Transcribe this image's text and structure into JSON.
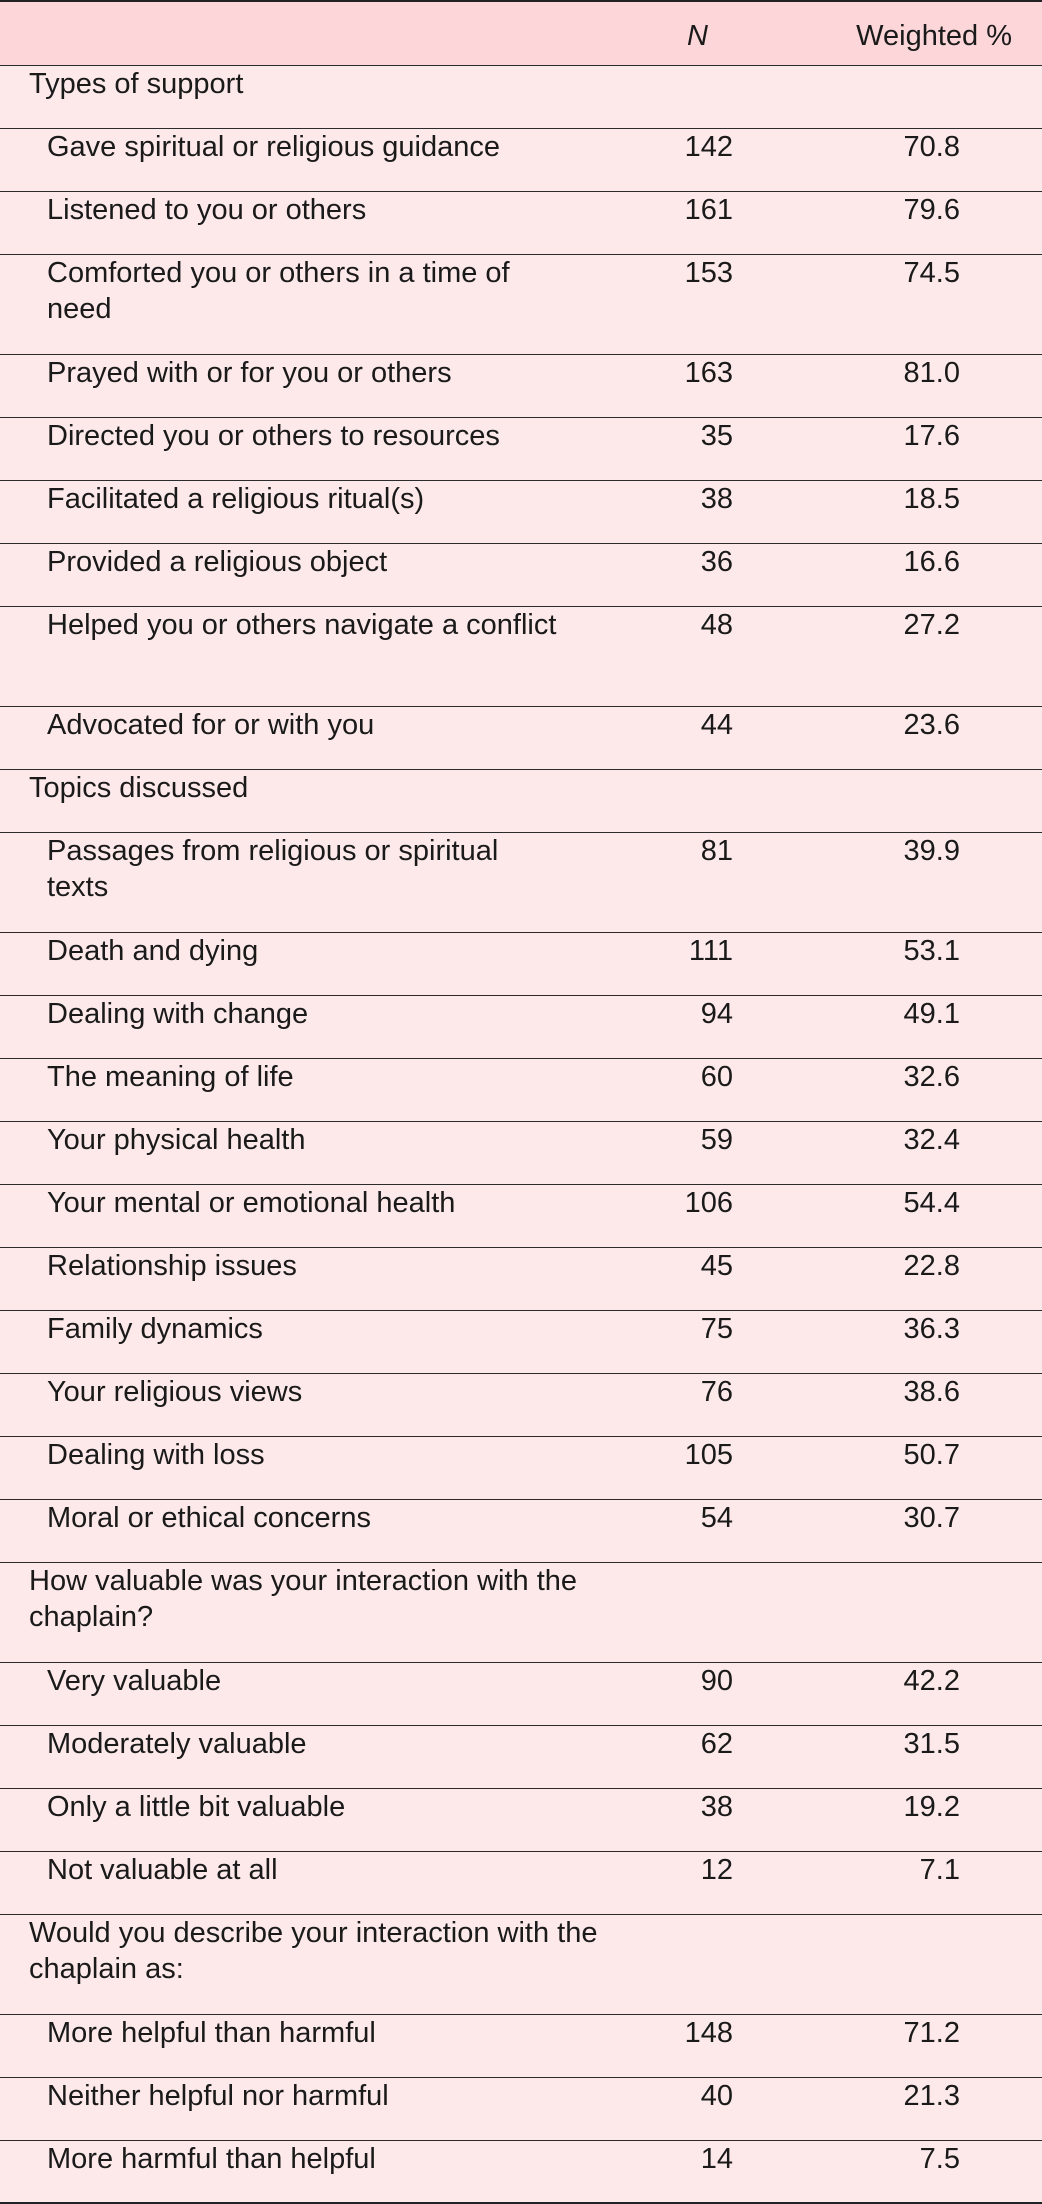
{
  "header": {
    "n_label": "N",
    "pct_label": "Weighted %"
  },
  "sections": [
    {
      "title": "Types of support",
      "rows": [
        {
          "label": "Gave spiritual or religious guidance",
          "n": "142",
          "pct": "70.8"
        },
        {
          "label": "Listened to you or others",
          "n": "161",
          "pct": "79.6"
        },
        {
          "label": "Comforted you or others in a time of need",
          "n": "153",
          "pct": "74.5"
        },
        {
          "label": "Prayed with or for you or others",
          "n": "163",
          "pct": "81.0"
        },
        {
          "label": "Directed you or others to resources",
          "n": "35",
          "pct": "17.6"
        },
        {
          "label": "Facilitated a religious ritual(s)",
          "n": "38",
          "pct": "18.5"
        },
        {
          "label": "Provided a religious object",
          "n": "36",
          "pct": "16.6"
        },
        {
          "label": "Helped you or others navigate a conflict",
          "n": "48",
          "pct": "27.2"
        },
        {
          "label": "Advocated for or with you",
          "n": "44",
          "pct": "23.6"
        }
      ]
    },
    {
      "title": "Topics discussed",
      "rows": [
        {
          "label": "Passages from religious or spiritual texts",
          "n": "81",
          "pct": "39.9"
        },
        {
          "label": "Death and dying",
          "n": "111",
          "pct": "53.1"
        },
        {
          "label": "Dealing with change",
          "n": "94",
          "pct": "49.1"
        },
        {
          "label": "The meaning of life",
          "n": "60",
          "pct": "32.6"
        },
        {
          "label": "Your physical health",
          "n": "59",
          "pct": "32.4"
        },
        {
          "label": "Your mental or emotional health",
          "n": "106",
          "pct": "54.4"
        },
        {
          "label": "Relationship issues",
          "n": "45",
          "pct": "22.8"
        },
        {
          "label": "Family dynamics",
          "n": "75",
          "pct": "36.3"
        },
        {
          "label": "Your religious views",
          "n": "76",
          "pct": "38.6"
        },
        {
          "label": "Dealing with loss",
          "n": "105",
          "pct": "50.7"
        },
        {
          "label": "Moral or ethical concerns",
          "n": "54",
          "pct": "30.7"
        }
      ]
    },
    {
      "title": "How valuable was your interaction with the chaplain?",
      "rows": [
        {
          "label": "Very valuable",
          "n": "90",
          "pct": "42.2"
        },
        {
          "label": "Moderately valuable",
          "n": "62",
          "pct": "31.5"
        },
        {
          "label": "Only a little bit valuable",
          "n": "38",
          "pct": "19.2"
        },
        {
          "label": "Not valuable at all",
          "n": "12",
          "pct": "7.1"
        }
      ]
    },
    {
      "title": "Would you describe your interaction with the chaplain as:",
      "rows": [
        {
          "label": "More helpful than harmful",
          "n": "148",
          "pct": "71.2"
        },
        {
          "label": "Neither helpful nor harmful",
          "n": "40",
          "pct": "21.3"
        },
        {
          "label": "More harmful than helpful",
          "n": "14",
          "pct": "7.5"
        }
      ]
    }
  ]
}
